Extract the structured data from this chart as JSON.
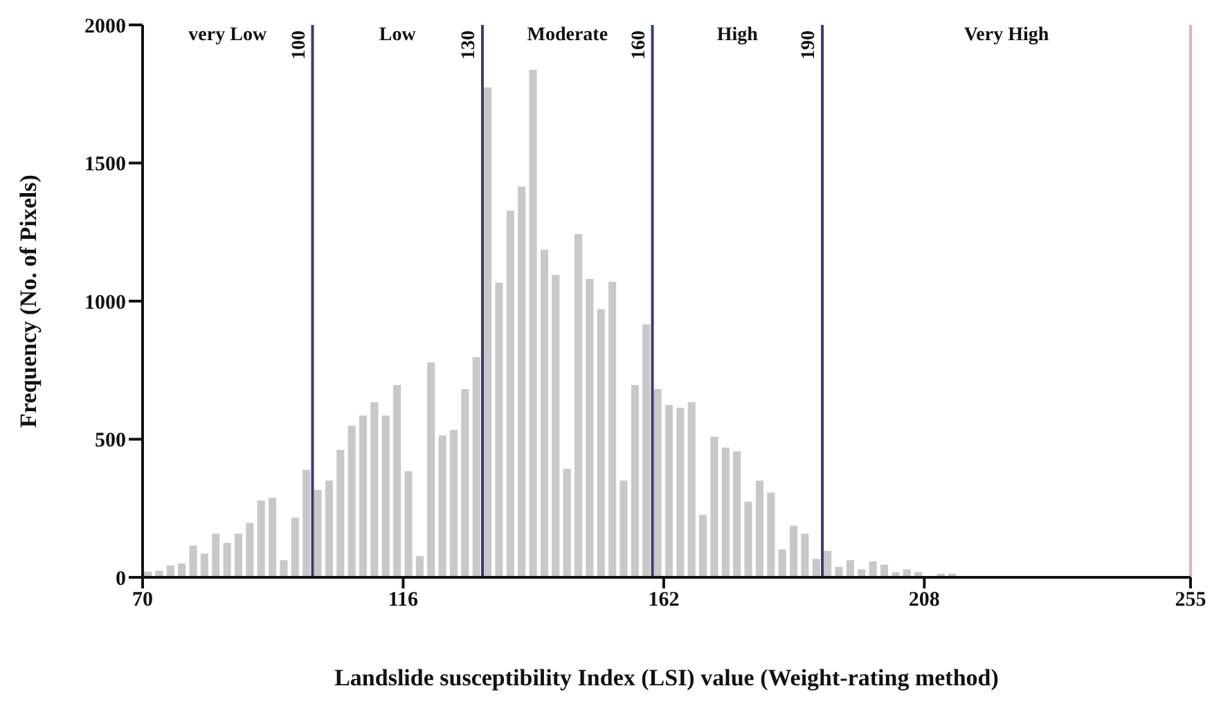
{
  "chart_data": {
    "type": "histogram",
    "xlabel": "Landslide susceptibility Index (LSI) value  (Weight-rating method)",
    "ylabel": "Frequency (No. of Pixels)",
    "bins": [
      70,
      72,
      74,
      76,
      78,
      80,
      82,
      84,
      86,
      88,
      90,
      92,
      94,
      96,
      98,
      100,
      102,
      104,
      106,
      108,
      110,
      112,
      114,
      116,
      118,
      120,
      122,
      124,
      126,
      128,
      130,
      132,
      134,
      136,
      138,
      140,
      142,
      144,
      146,
      148,
      150,
      152,
      154,
      156,
      158,
      160,
      162,
      164,
      166,
      168,
      170,
      172,
      174,
      176,
      178,
      180,
      182,
      184,
      186,
      188,
      190,
      192,
      194,
      196,
      198,
      200,
      202,
      204,
      206,
      208,
      210,
      212,
      214,
      216,
      218,
      220,
      222,
      224,
      226,
      228,
      230
    ],
    "values": [
      20,
      24,
      43,
      50,
      115,
      86,
      158,
      125,
      158,
      197,
      278,
      288,
      62,
      216,
      389,
      317,
      350,
      461,
      549,
      586,
      634,
      586,
      696,
      384,
      77,
      778,
      514,
      533,
      682,
      797,
      1774,
      1067,
      1328,
      1415,
      1838,
      1186,
      1095,
      393,
      1243,
      1080,
      971,
      1070,
      350,
      696,
      916,
      682,
      624,
      614,
      634,
      226,
      509,
      470,
      456,
      274,
      350,
      307,
      101,
      187,
      158,
      67,
      96,
      38,
      62,
      29,
      58,
      46,
      19,
      29,
      19,
      0,
      13,
      13,
      5,
      5,
      5,
      5,
      5,
      5,
      5,
      0
    ],
    "color": "#c8c8c8",
    "xlim": [
      70,
      255
    ],
    "xticks": [
      70,
      116,
      162,
      208,
      255
    ],
    "ylim": [
      0,
      2000
    ],
    "yticks": [
      0,
      500,
      1000,
      1500,
      2000
    ],
    "grid": false,
    "legend": false,
    "ref_lines": [
      {
        "axis": "x",
        "value": 100,
        "label": "100",
        "color": "#3c3c6e"
      },
      {
        "axis": "x",
        "value": 130,
        "label": "130",
        "color": "#3c3c6e"
      },
      {
        "axis": "x",
        "value": 160,
        "label": "160",
        "color": "#3c3c6e"
      },
      {
        "axis": "x",
        "value": 190,
        "label": "190",
        "color": "#3c3c6e"
      },
      {
        "axis": "x",
        "value": 255,
        "label": null,
        "color": "#e0b0b8"
      }
    ],
    "annotations": [
      "very Low",
      "Low",
      "Moderate",
      "High",
      "Very High"
    ]
  }
}
